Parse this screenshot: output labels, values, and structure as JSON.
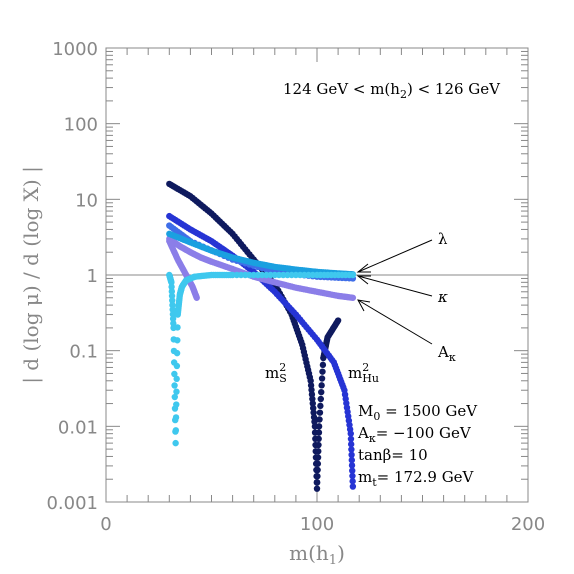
{
  "chart_data": {
    "type": "scatter",
    "xlabel": "m(h₁)",
    "ylabel": "| d (log μ) / d (log X) |",
    "xlim": [
      0,
      200
    ],
    "ylim": [
      0.001,
      1000
    ],
    "y_scale": "log",
    "x_ticks": [
      "0",
      "100",
      "200"
    ],
    "y_ticks": [
      "0.001",
      "0.01",
      "0.1",
      "1",
      "10",
      "100",
      "1000"
    ],
    "reference_line_y": 1,
    "annotation_top": "124 GeV < m(h₂) < 126 GeV",
    "parameters": [
      "M₀ = 1500 GeV",
      "Aκ= −100 GeV",
      "tanβ= 10",
      "mₜ= 172.9 GeV"
    ],
    "curve_labels": {
      "lambda": "λ",
      "kappa": "κ",
      "a_kappa": "Aκ",
      "ms2": "m²S",
      "mhu2": "m²Hu"
    },
    "series": [
      {
        "key": "ms2",
        "color": "#0f1a5e",
        "x": [
          30,
          40,
          50,
          60,
          70,
          80,
          88,
          93,
          97,
          99,
          100,
          101,
          103,
          105,
          110
        ],
        "y": [
          16,
          11,
          6.5,
          3.5,
          1.6,
          0.75,
          0.3,
          0.12,
          0.04,
          0.01,
          0.0015,
          0.01,
          0.08,
          0.15,
          0.25
        ]
      },
      {
        "key": "mhu2",
        "color": "#2634d4",
        "x": [
          30,
          40,
          50,
          60,
          70,
          80,
          90,
          100,
          108,
          113,
          116,
          117
        ],
        "y": [
          6,
          4,
          2.8,
          1.8,
          1.1,
          0.6,
          0.3,
          0.14,
          0.07,
          0.03,
          0.008,
          0.0016
        ]
      },
      {
        "key": "a_kappa",
        "color": "#3f6ee8",
        "x": [
          30,
          40,
          60,
          80,
          100,
          117
        ],
        "y": [
          4.5,
          2.8,
          1.6,
          1.1,
          0.95,
          0.9
        ]
      },
      {
        "key": "kappa",
        "color": "#8b7ee8",
        "x": [
          30,
          35,
          40,
          45,
          50,
          60,
          70,
          80,
          90,
          100,
          110,
          117
        ],
        "y": [
          3,
          2.4,
          2.0,
          1.7,
          1.5,
          1.2,
          0.95,
          0.8,
          0.68,
          0.6,
          0.53,
          0.5
        ]
      },
      {
        "key": "kappa_low",
        "color": "#8b7ee8",
        "x": [
          30,
          34,
          38,
          41,
          43
        ],
        "y": [
          2.8,
          1.6,
          1.0,
          0.7,
          0.5
        ]
      },
      {
        "key": "lambda",
        "color": "#1aa0e0",
        "x": [
          30,
          40,
          50,
          60,
          70,
          80,
          90,
          100,
          110,
          117
        ],
        "y": [
          3.5,
          2.7,
          2.1,
          1.7,
          1.45,
          1.28,
          1.18,
          1.1,
          1.05,
          1.02
        ]
      },
      {
        "key": "lambda_low",
        "color": "#3fc8ee",
        "x": [
          30,
          31,
          32,
          33,
          34,
          35,
          36,
          38,
          42,
          50,
          60,
          80,
          100,
          117
        ],
        "y": [
          1.0,
          0.8,
          0.2,
          0.006,
          0.3,
          0.55,
          0.7,
          0.85,
          0.95,
          1.0,
          1.0,
          1.0,
          1.0,
          1.0
        ]
      }
    ]
  }
}
